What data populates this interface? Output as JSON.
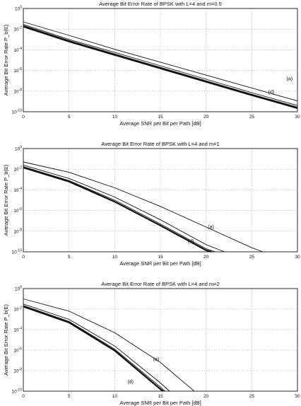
{
  "chart_data": [
    {
      "type": "line",
      "title": "Average Bit Error Rate of BPSK with L=4 and m=0.5",
      "xlabel": "Average SNR per Bit per Path [dB]",
      "ylabel": "Average Bit Error Rate P_b(E)",
      "xlim": [
        0,
        30
      ],
      "ylim_log10": [
        -10,
        0
      ],
      "xticks": [
        "0",
        "5",
        "10",
        "15",
        "20",
        "25",
        "30"
      ],
      "yticks": [
        "10^0",
        "10^-2",
        "10^-4",
        "10^-6",
        "10^-8",
        "10^-10"
      ],
      "grid": true,
      "annotations": [
        {
          "text": "(a)",
          "x": 28.8,
          "log10y": -6.8
        },
        {
          "text": "(d)",
          "x": 26.8,
          "log10y": -8.1
        }
      ],
      "series": [
        {
          "x": [
            0,
            5,
            10,
            15,
            20,
            25,
            28,
            30
          ],
          "log10y": [
            -1.3,
            -2.6,
            -3.95,
            -5.2,
            -6.45,
            -7.7,
            -8.45,
            -8.95
          ],
          "weight": 1
        },
        {
          "x": [
            0,
            5,
            10,
            15,
            20,
            25,
            28,
            30
          ],
          "log10y": [
            -1.55,
            -3.0,
            -4.25,
            -5.55,
            -6.85,
            -8.15,
            -8.9,
            -9.4
          ],
          "weight": 1
        },
        {
          "x": [
            0,
            5,
            10,
            15,
            20,
            25,
            28,
            30
          ],
          "log10y": [
            -1.65,
            -3.1,
            -4.4,
            -5.7,
            -7.0,
            -8.3,
            -9.05,
            -9.55
          ],
          "weight": 1
        },
        {
          "x": [
            0,
            5,
            10,
            15,
            20,
            25,
            28,
            30
          ],
          "log10y": [
            -1.75,
            -3.2,
            -4.5,
            -5.8,
            -7.1,
            -8.4,
            -9.15,
            -9.65
          ],
          "weight": 2
        }
      ]
    },
    {
      "type": "line",
      "title": "Average Bit Error Rate of BPSK with L=4 and m=1",
      "xlabel": "Average SNR per Bit per Path [dB]",
      "ylabel": "Average Bit Error Rate P_b(E)",
      "xlim": [
        0,
        30
      ],
      "ylim_log10": [
        -10,
        0
      ],
      "xticks": [
        "0",
        "5",
        "10",
        "15",
        "20",
        "25",
        "30"
      ],
      "yticks": [
        "10^0",
        "10^-2",
        "10^-4",
        "10^-6",
        "10^-8",
        "10^-10"
      ],
      "grid": true,
      "annotations": [
        {
          "text": "(a)",
          "x": 20.2,
          "log10y": -7.6
        },
        {
          "text": "(d)",
          "x": 18.0,
          "log10y": -9.0
        }
      ],
      "series": [
        {
          "x": [
            0,
            5,
            10,
            15,
            20,
            25,
            26.2
          ],
          "log10y": [
            -1.3,
            -2.3,
            -3.8,
            -5.6,
            -7.6,
            -9.6,
            -10.0
          ],
          "weight": 1
        },
        {
          "x": [
            0,
            5,
            10,
            15,
            20,
            22.0
          ],
          "log10y": [
            -1.6,
            -2.9,
            -4.7,
            -6.9,
            -9.3,
            -10.0
          ],
          "weight": 1
        },
        {
          "x": [
            0,
            5,
            10,
            15,
            20,
            21.0
          ],
          "log10y": [
            -1.75,
            -3.1,
            -5.0,
            -7.3,
            -9.7,
            -10.0
          ],
          "weight": 1
        },
        {
          "x": [
            0,
            5,
            10,
            15,
            20,
            20.6
          ],
          "log10y": [
            -1.85,
            -3.2,
            -5.15,
            -7.45,
            -9.85,
            -10.0
          ],
          "weight": 2
        }
      ]
    },
    {
      "type": "line",
      "title": "Average Bit Error Rate of BPSK with L=4 and m=2",
      "xlabel": "Average SNR per Bit per Path [dB]",
      "ylabel": "Average Bit Error Rate P_b(E)",
      "xlim": [
        0,
        30
      ],
      "ylim_log10": [
        -10,
        0
      ],
      "xticks": [
        "0",
        "5",
        "10",
        "15",
        "20",
        "25",
        "30"
      ],
      "yticks": [
        "10^0",
        "10^-2",
        "10^-4",
        "10^-6",
        "10^-8",
        "10^-10"
      ],
      "grid": true,
      "annotations": [
        {
          "text": "(a)",
          "x": 14.2,
          "log10y": -6.9
        },
        {
          "text": "(d)",
          "x": 11.4,
          "log10y": -9.1
        }
      ],
      "series": [
        {
          "x": [
            0,
            5,
            10,
            15,
            18.7
          ],
          "log10y": [
            -1.0,
            -2.2,
            -4.3,
            -7.2,
            -10.0
          ],
          "weight": 1
        },
        {
          "x": [
            0,
            5,
            10,
            15,
            16.0
          ],
          "log10y": [
            -1.5,
            -3.0,
            -5.6,
            -9.2,
            -10.0
          ],
          "weight": 1
        },
        {
          "x": [
            0,
            5,
            10,
            15,
            15.5
          ],
          "log10y": [
            -1.65,
            -3.2,
            -5.9,
            -9.6,
            -10.0
          ],
          "weight": 1
        },
        {
          "x": [
            0,
            5,
            10,
            15,
            15.3
          ],
          "log10y": [
            -1.75,
            -3.3,
            -6.05,
            -9.8,
            -10.0
          ],
          "weight": 2
        }
      ]
    }
  ]
}
